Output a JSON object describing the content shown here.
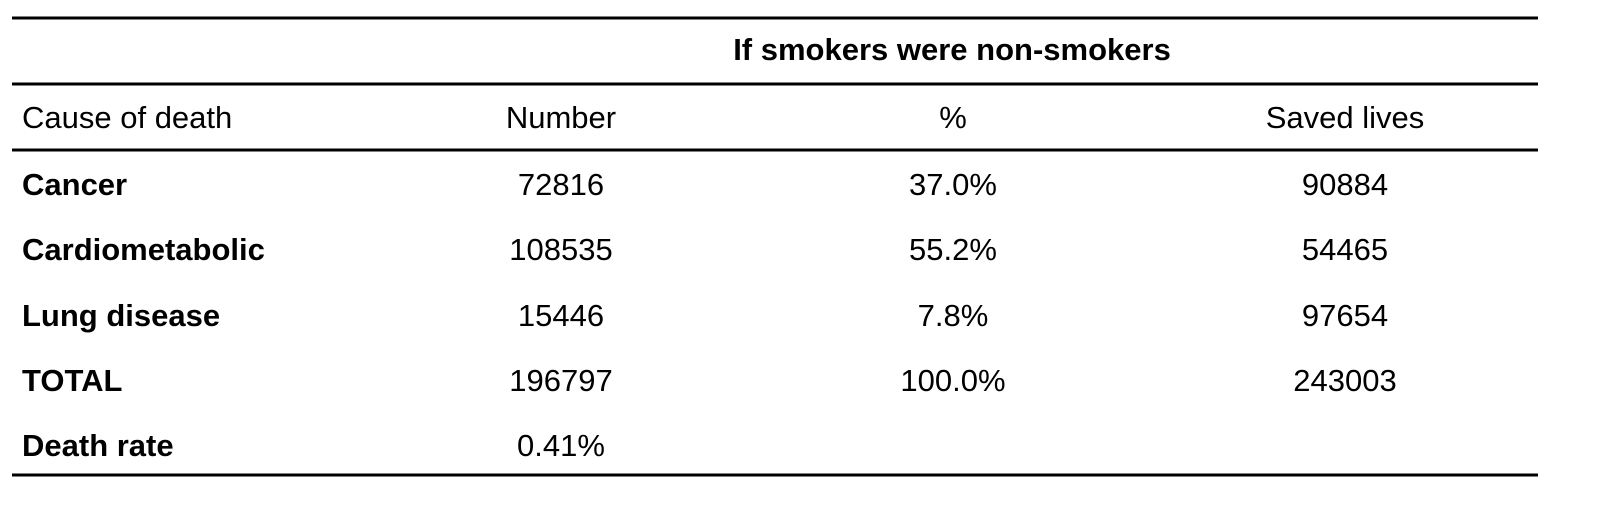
{
  "table": {
    "group_header": "If smokers were non-smokers",
    "columns": [
      "Cause of death",
      "Number",
      "%",
      "Saved lives"
    ],
    "rows": [
      [
        "Cancer",
        "72816",
        "37.0%",
        "90884"
      ],
      [
        "Cardiometabolic",
        "108535",
        "55.2%",
        "54465"
      ],
      [
        "Lung disease",
        "15446",
        "7.8%",
        "97654"
      ],
      [
        "TOTAL",
        "196797",
        "100.0%",
        "243003"
      ],
      [
        "Death rate",
        "0.41%"
      ]
    ]
  }
}
